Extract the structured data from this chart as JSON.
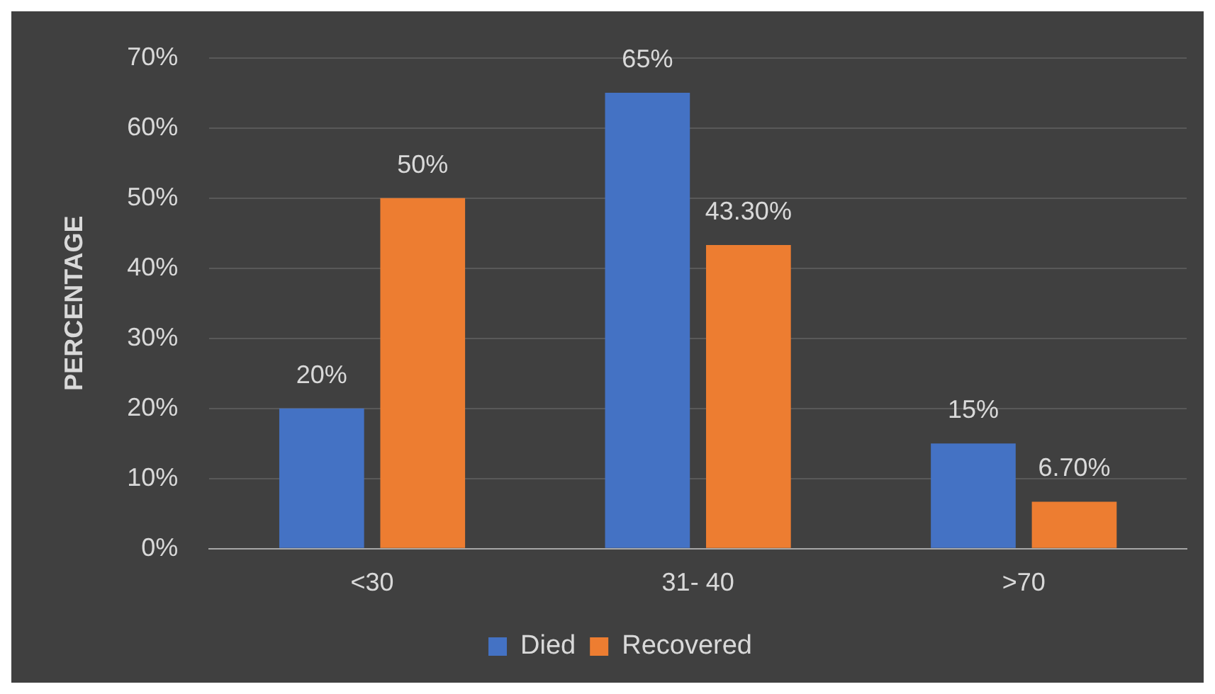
{
  "chart_data": {
    "type": "bar",
    "ylabel": "PERCENTAGE",
    "categories": [
      "<30",
      "31- 40",
      ">70"
    ],
    "series": [
      {
        "name": "Died",
        "color": "#4472c4",
        "values": [
          20,
          65,
          15
        ],
        "value_labels": [
          "20%",
          "65%",
          "15%"
        ]
      },
      {
        "name": "Recovered",
        "color": "#ed7d31",
        "values": [
          50,
          43.3,
          6.7
        ],
        "value_labels": [
          "50%",
          "43.30%",
          "6.70%"
        ]
      }
    ],
    "ylim": [
      0,
      70
    ],
    "yticks": [
      {
        "value": 0,
        "label": "0%"
      },
      {
        "value": 10,
        "label": "10%"
      },
      {
        "value": 20,
        "label": "20%"
      },
      {
        "value": 30,
        "label": "30%"
      },
      {
        "value": 40,
        "label": "40%"
      },
      {
        "value": 50,
        "label": "50%"
      },
      {
        "value": 60,
        "label": "60%"
      },
      {
        "value": 70,
        "label": "70%"
      }
    ],
    "grid": "y",
    "legend": "bottom"
  }
}
